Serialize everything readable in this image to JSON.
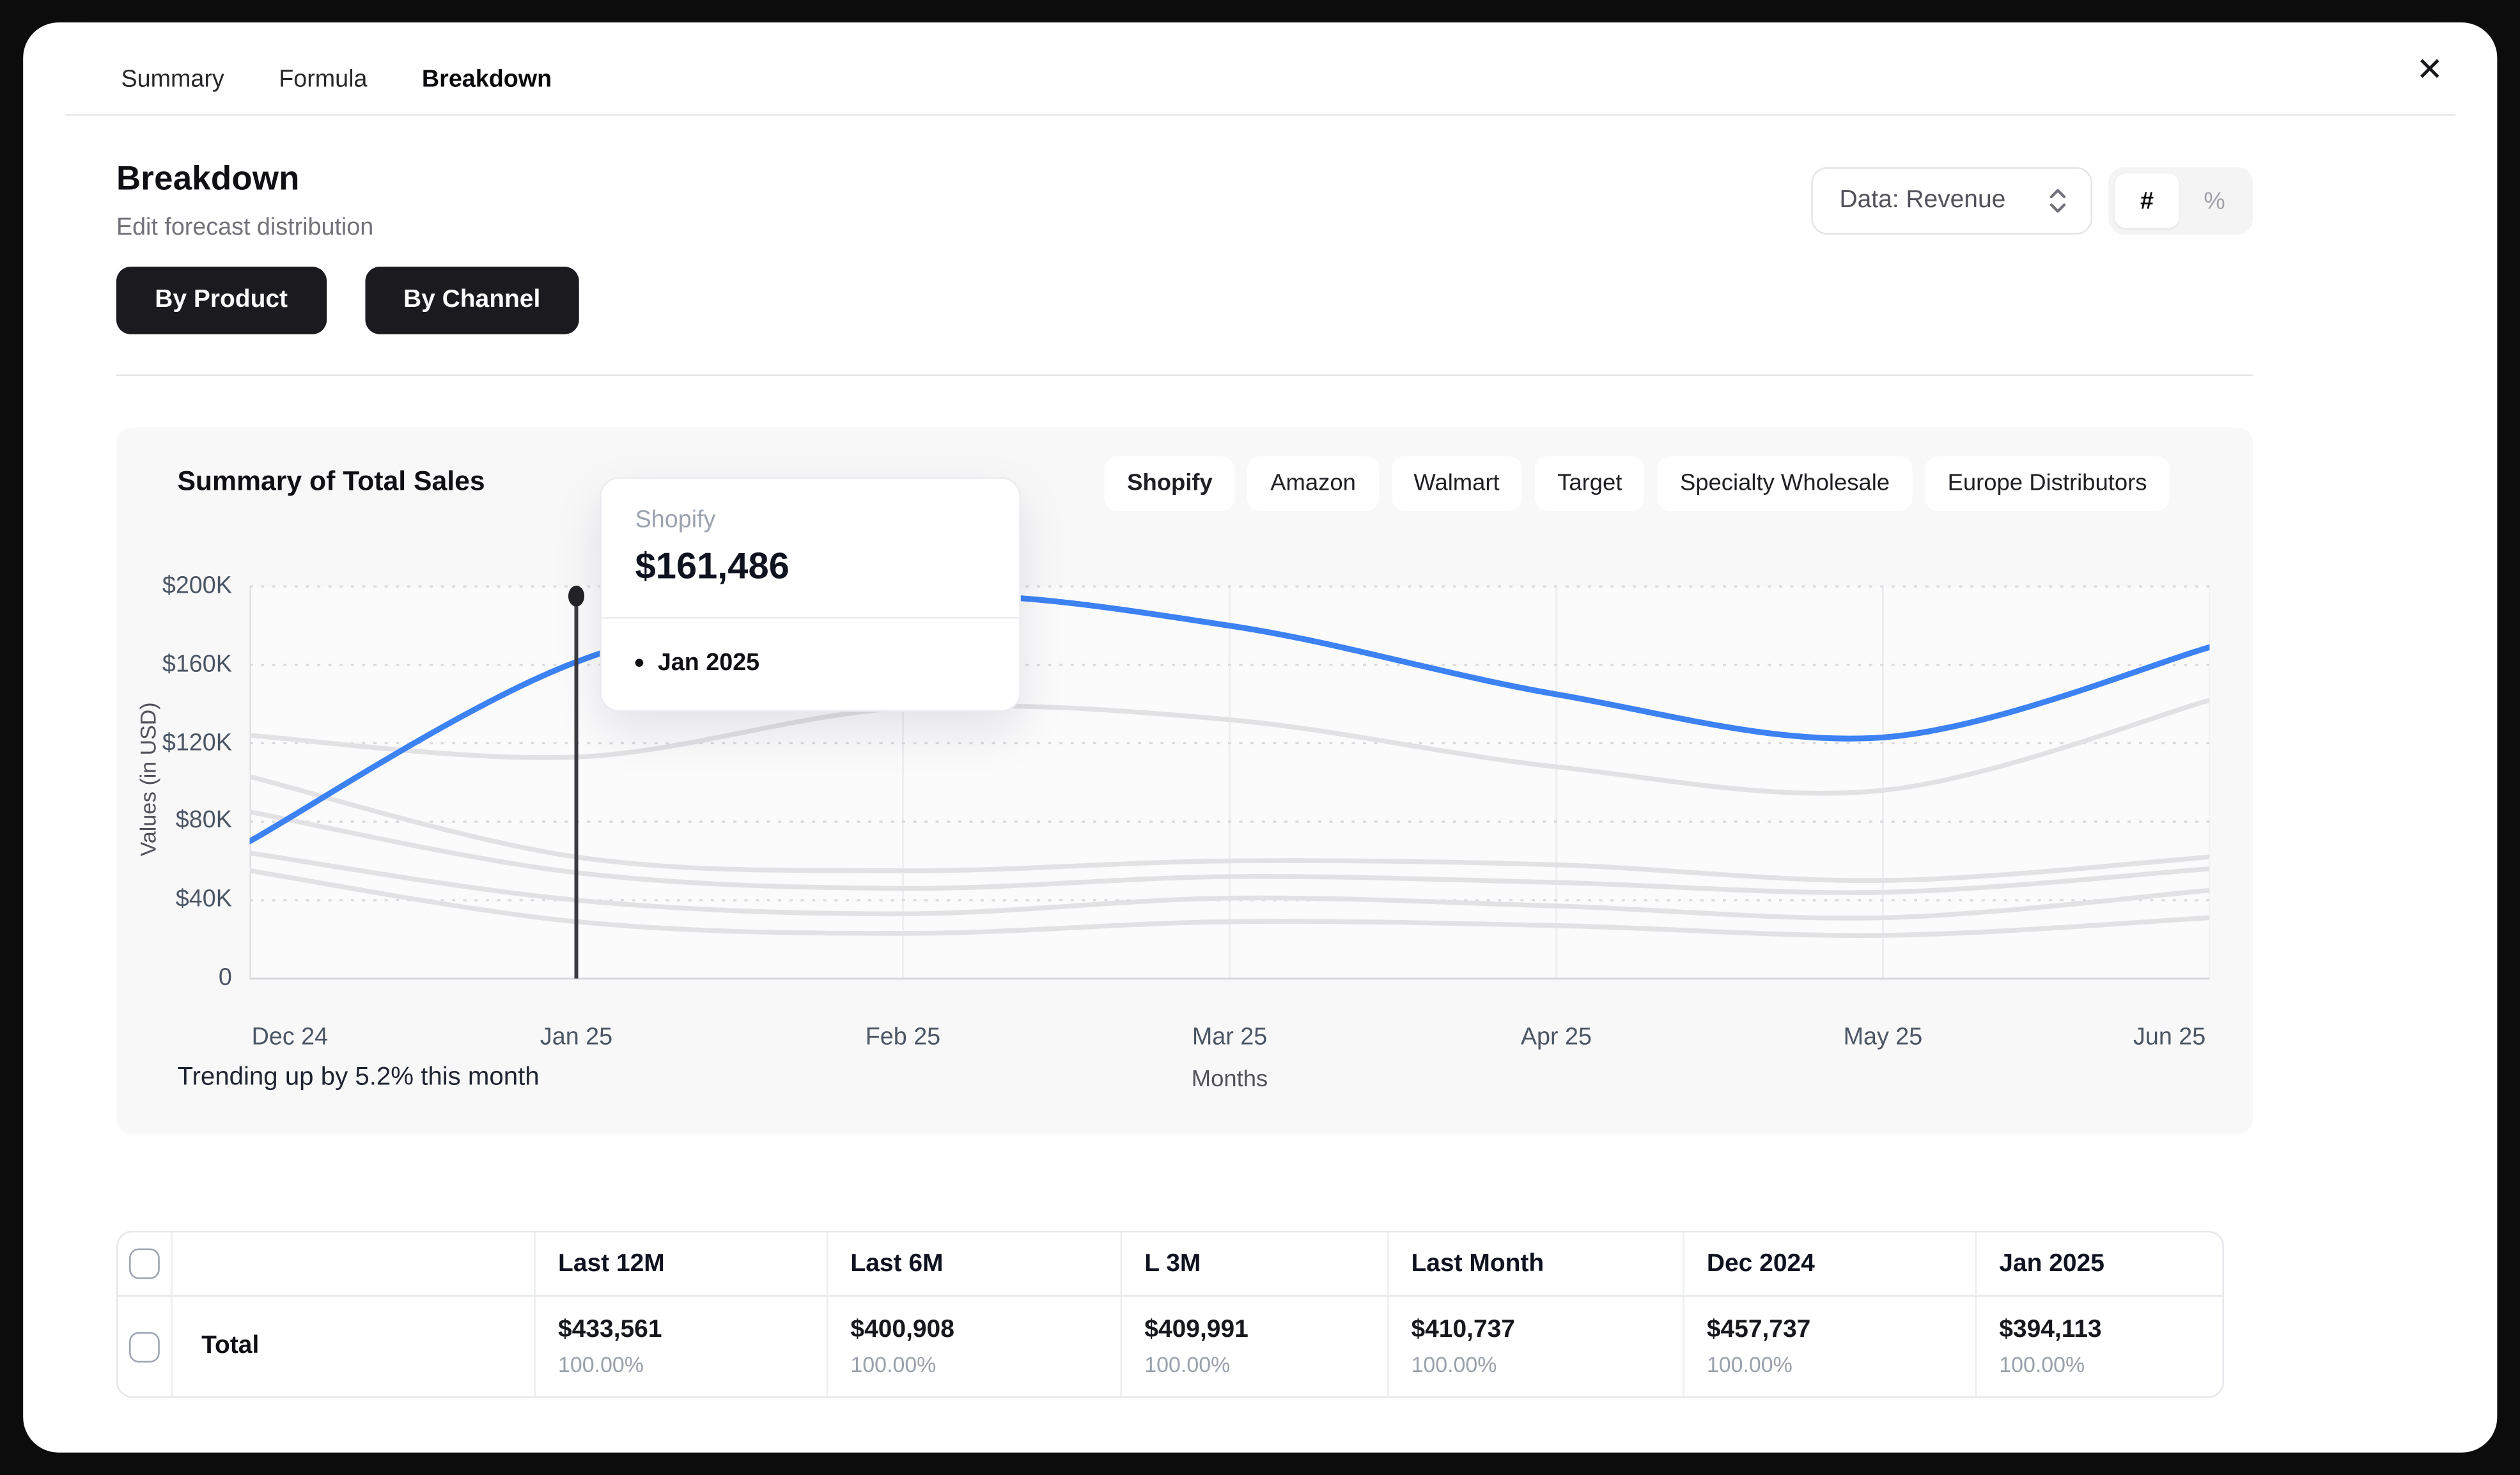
{
  "window": {
    "close_label": "✕"
  },
  "tabs": {
    "items": [
      {
        "label": "Summary",
        "active": false
      },
      {
        "label": "Formula",
        "active": false
      },
      {
        "label": "Breakdown",
        "active": true
      }
    ]
  },
  "header": {
    "title": "Breakdown",
    "subtitle": "Edit forecast distribution",
    "data_select_value": "Data: Revenue",
    "toggle": {
      "hash": "#",
      "percent": "%",
      "active": "#"
    }
  },
  "view_toggle": {
    "by_product": "By Product",
    "by_channel": "By Channel"
  },
  "chart_card": {
    "title": "Summary of Total Sales",
    "chips": [
      {
        "label": "Shopify",
        "active": true
      },
      {
        "label": "Amazon",
        "active": false
      },
      {
        "label": "Walmart",
        "active": false
      },
      {
        "label": "Target",
        "active": false
      },
      {
        "label": "Specialty Wholesale",
        "active": false
      },
      {
        "label": "Europe Distributors",
        "active": false
      }
    ],
    "tooltip": {
      "series": "Shopify",
      "value": "$161,486",
      "period": "Jan 2025"
    },
    "footer_note": "Trending up by 5.2% this month",
    "chart_data": {
      "type": "line",
      "x": [
        "Dec 24",
        "Jan 25",
        "Feb 25",
        "Mar 25",
        "Apr 25",
        "May 25",
        "Jun 25"
      ],
      "xlabel": "Months",
      "ylabel": "Values (in USD)",
      "y_max": 200000,
      "yticks": [
        {
          "label": "$200K",
          "value": 200000
        },
        {
          "label": "$160K",
          "value": 160000
        },
        {
          "label": "$120K",
          "value": 120000
        },
        {
          "label": "$80K",
          "value": 80000
        },
        {
          "label": "$40K",
          "value": 40000
        },
        {
          "label": "0",
          "value": 0
        }
      ],
      "series": [
        {
          "name": "Amazon",
          "emphasis": false,
          "color": "#e2e2e5",
          "values": [
            124000,
            113000,
            138000,
            132000,
            108000,
            96000,
            142000
          ]
        },
        {
          "name": "Walmart",
          "emphasis": false,
          "color": "#e2e2e5",
          "values": [
            103000,
            62000,
            55000,
            60000,
            58000,
            50000,
            62000
          ]
        },
        {
          "name": "Target",
          "emphasis": false,
          "color": "#e2e2e5",
          "values": [
            85000,
            54000,
            46000,
            52000,
            49000,
            44000,
            56000
          ]
        },
        {
          "name": "Specialty Wholesale",
          "emphasis": false,
          "color": "#e2e2e5",
          "values": [
            64000,
            40000,
            33000,
            41000,
            37000,
            31000,
            45000
          ]
        },
        {
          "name": "Europe Distributors",
          "emphasis": false,
          "color": "#e2e2e5",
          "values": [
            55000,
            29000,
            23000,
            29000,
            27000,
            22000,
            31000
          ]
        },
        {
          "name": "Shopify",
          "emphasis": true,
          "color": "#3d82f4",
          "values": [
            70000,
            161486,
            195000,
            180000,
            145000,
            123000,
            169000
          ]
        }
      ],
      "highlight": {
        "series": "Shopify",
        "x": "Jan 25",
        "x_index": 1,
        "value": 161486,
        "value_label": "$161,486"
      },
      "grid": "horizontal-dotted"
    }
  },
  "table": {
    "columns": [
      "",
      "",
      "Last 12M",
      "Last 6M",
      "L 3M",
      "Last Month",
      "Dec 2024",
      "Jan 2025"
    ],
    "rows": [
      {
        "label": "Total",
        "cells": [
          {
            "value": "$433,561",
            "pct": "100.00%"
          },
          {
            "value": "$400,908",
            "pct": "100.00%"
          },
          {
            "value": "$409,991",
            "pct": "100.00%"
          },
          {
            "value": "$410,737",
            "pct": "100.00%"
          },
          {
            "value": "$457,737",
            "pct": "100.00%"
          },
          {
            "value": "$394,113",
            "pct": "100.00%"
          }
        ]
      }
    ]
  },
  "colors": {
    "accent_blue": "#3d82f4",
    "muted_line": "#e2e2e5",
    "dark_button": "#1b1b1f"
  }
}
